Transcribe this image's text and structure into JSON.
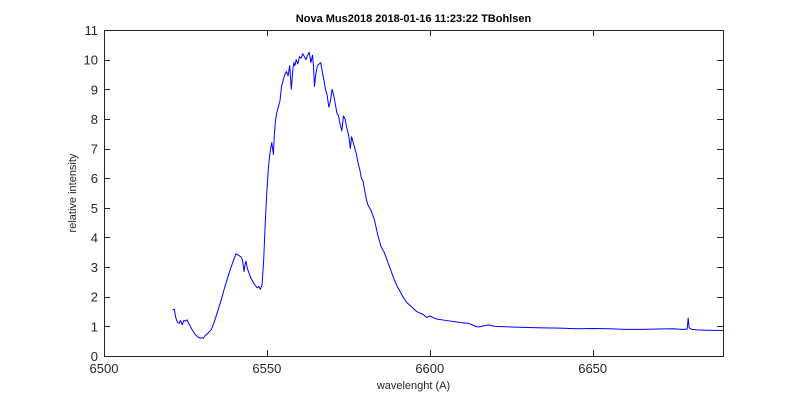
{
  "chart_data": {
    "type": "line",
    "title": "Nova Mus2018 2018-01-16   11:23:22  TBohlsen",
    "xlabel": "wavelenght (A)",
    "ylabel": "relative intensity",
    "xlim": [
      6500,
      6690
    ],
    "ylim": [
      0,
      11
    ],
    "xticks": [
      6500,
      6550,
      6600,
      6650
    ],
    "yticks": [
      0,
      1,
      2,
      3,
      4,
      5,
      6,
      7,
      8,
      9,
      10,
      11
    ],
    "grid": false,
    "box": true,
    "series": [
      {
        "color": "#0000ff",
        "x": [
          6521,
          6521.6,
          6522,
          6522.5,
          6523,
          6523.5,
          6524,
          6524.5,
          6525,
          6525.5,
          6526,
          6527,
          6528,
          6529,
          6529.5,
          6530,
          6530.5,
          6531,
          6532,
          6533,
          6534,
          6535,
          6536,
          6537,
          6538,
          6539,
          6540,
          6540.5,
          6541,
          6541.5,
          6542,
          6542.5,
          6543,
          6543.3,
          6543.6,
          6544,
          6545,
          6546,
          6547,
          6547.5,
          6548,
          6548.5,
          6549,
          6549.5,
          6550,
          6550.5,
          6551,
          6551.5,
          6552,
          6552.3,
          6552.6,
          6553,
          6553.5,
          6554,
          6554.5,
          6555,
          6555.5,
          6556,
          6556.5,
          6557,
          6557.5,
          6558,
          6558.3,
          6558.6,
          6559,
          6559.5,
          6560,
          6560.5,
          6561,
          6561.5,
          6562,
          6562.5,
          6563,
          6563.5,
          6564,
          6564.3,
          6564.6,
          6565,
          6565.5,
          6566,
          6566.5,
          6567,
          6567.5,
          6568,
          6568.5,
          6569,
          6569.5,
          6570,
          6570.5,
          6571,
          6571.5,
          6572,
          6572.5,
          6573,
          6573.5,
          6574,
          6574.5,
          6575,
          6575.3,
          6575.6,
          6576,
          6576.5,
          6577,
          6577.5,
          6578,
          6578.5,
          6579,
          6579.5,
          6580,
          6580.5,
          6581,
          6582,
          6583,
          6584,
          6585,
          6586,
          6587,
          6588,
          6589,
          6590,
          6591,
          6592,
          6593,
          6594,
          6595,
          6596,
          6597,
          6598,
          6599,
          6600,
          6602,
          6605,
          6608,
          6610,
          6612,
          6613,
          6614,
          6615,
          6618,
          6620,
          6625,
          6630,
          6635,
          6640,
          6645,
          6650,
          6655,
          6660,
          6665,
          6670,
          6675,
          6677,
          6678,
          6679,
          6679.3,
          6679.6,
          6680,
          6680.5,
          6682,
          6685,
          6690
        ],
        "y": [
          1.55,
          1.58,
          1.3,
          1.15,
          1.1,
          1.2,
          1.05,
          1.2,
          1.18,
          1.22,
          1.1,
          0.9,
          0.72,
          0.63,
          0.6,
          0.62,
          0.6,
          0.68,
          0.78,
          0.9,
          1.2,
          1.55,
          1.9,
          2.3,
          2.65,
          3.0,
          3.3,
          3.45,
          3.42,
          3.38,
          3.35,
          3.25,
          2.85,
          3.1,
          3.2,
          2.95,
          2.65,
          2.45,
          2.3,
          2.35,
          2.25,
          2.4,
          3.2,
          4.5,
          5.6,
          6.4,
          6.9,
          7.2,
          6.8,
          7.5,
          7.9,
          8.2,
          8.4,
          8.6,
          9.1,
          9.3,
          9.5,
          9.6,
          9.45,
          9.8,
          9.0,
          9.7,
          9.9,
          9.8,
          10.0,
          9.85,
          10.1,
          10.05,
          10.2,
          10.1,
          10.0,
          10.15,
          10.25,
          9.9,
          10.15,
          9.8,
          9.1,
          9.5,
          9.8,
          9.85,
          9.9,
          9.6,
          9.3,
          9.0,
          8.8,
          8.4,
          8.6,
          9.0,
          8.8,
          8.5,
          8.2,
          8.1,
          7.8,
          7.6,
          8.1,
          8.0,
          7.7,
          7.5,
          7.3,
          7.0,
          7.4,
          7.2,
          7.0,
          6.8,
          6.5,
          6.3,
          6.0,
          5.9,
          5.6,
          5.3,
          5.1,
          4.9,
          4.6,
          4.1,
          3.7,
          3.5,
          3.2,
          2.9,
          2.6,
          2.35,
          2.15,
          1.95,
          1.8,
          1.7,
          1.6,
          1.5,
          1.45,
          1.4,
          1.3,
          1.35,
          1.25,
          1.2,
          1.15,
          1.12,
          1.1,
          1.05,
          1.0,
          0.98,
          1.05,
          1.0,
          0.98,
          0.96,
          0.95,
          0.94,
          0.92,
          0.93,
          0.92,
          0.9,
          0.9,
          0.91,
          0.92,
          0.9,
          0.9,
          0.91,
          1.28,
          0.95,
          0.92,
          0.9,
          0.88,
          0.87,
          0.86
        ]
      }
    ]
  }
}
